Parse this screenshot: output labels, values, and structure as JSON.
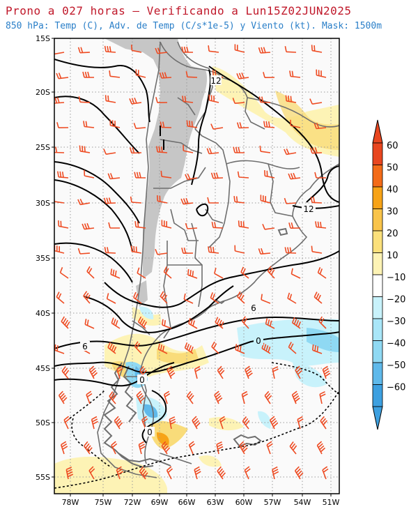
{
  "header": {
    "title": "Prono a 027 horas – Verificando a Lun15Z02JUN2025",
    "subtitle": "850 hPa: Temp (C), Adv. de Temp (C/s*1e-5) y Viento (kt). Mask: 1500m"
  },
  "map": {
    "lat_ticks": [
      "15S",
      "20S",
      "25S",
      "30S",
      "35S",
      "40S",
      "45S",
      "50S",
      "55S"
    ],
    "lon_ticks": [
      "78W",
      "75W",
      "72W",
      "69W",
      "66W",
      "63W",
      "60W",
      "57W",
      "54W",
      "51W"
    ],
    "contour_labels": [
      "12",
      "12",
      "6",
      "6",
      "0",
      "0",
      "0"
    ],
    "colors": {
      "mask": "#c6c6c6",
      "warm_light": "#fdf3b5",
      "warm_mid": "#f9dc7a",
      "cold_light": "#c8f2fb",
      "cold_mid": "#8fd9f3",
      "wind_barb": "#ee4b22"
    }
  },
  "colorbar": {
    "labels": [
      "60",
      "50",
      "40",
      "30",
      "20",
      "10",
      "−10",
      "−20",
      "−30",
      "−40",
      "−50",
      "−60"
    ],
    "colors": [
      "#e8461f",
      "#f36b18",
      "#f7a317",
      "#f9c44a",
      "#fbe07b",
      "#fdf3b5",
      "#ffffff",
      "#c8f2fb",
      "#a9e6f8",
      "#8fd9f3",
      "#5fb9ea",
      "#3da0e0"
    ]
  }
}
